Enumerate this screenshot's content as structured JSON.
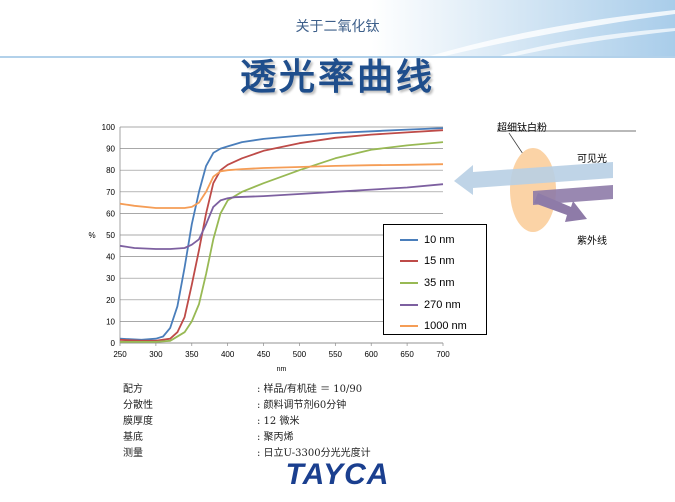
{
  "header": {
    "subtitle": "关于二氧化钛",
    "title": "透光率曲线"
  },
  "chart_data": {
    "type": "line",
    "xlabel": "nm",
    "ylabel": "%",
    "xlim": [
      250,
      700
    ],
    "ylim": [
      0,
      100
    ],
    "x_ticks": [
      250,
      300,
      350,
      400,
      450,
      500,
      550,
      600,
      650,
      700
    ],
    "y_ticks": [
      0,
      10,
      20,
      30,
      40,
      50,
      60,
      70,
      80,
      90,
      100
    ],
    "grid": "horizontal",
    "legend_position": "bottom-right",
    "series": [
      {
        "name": "10 nm",
        "color": "#4a7ebb",
        "x": [
          250,
          280,
          300,
          310,
          320,
          330,
          340,
          350,
          360,
          370,
          380,
          390,
          400,
          420,
          450,
          500,
          550,
          600,
          650,
          700
        ],
        "y": [
          2,
          1.5,
          2,
          3,
          7,
          17,
          35,
          55,
          70,
          82,
          88,
          90,
          91,
          93,
          94.5,
          96,
          97.2,
          98,
          98.8,
          99.5
        ]
      },
      {
        "name": "15 nm",
        "color": "#be4b48",
        "x": [
          250,
          280,
          300,
          320,
          330,
          340,
          350,
          360,
          370,
          380,
          390,
          400,
          420,
          450,
          500,
          550,
          600,
          650,
          700
        ],
        "y": [
          1.5,
          1,
          1,
          2,
          5,
          12,
          27,
          43,
          60,
          74,
          80,
          82.5,
          85.5,
          89,
          92.5,
          95,
          96.5,
          97.5,
          98.5
        ]
      },
      {
        "name": "35 nm",
        "color": "#98b954",
        "x": [
          250,
          300,
          320,
          340,
          350,
          360,
          370,
          380,
          390,
          400,
          420,
          450,
          500,
          550,
          600,
          650,
          700
        ],
        "y": [
          0.5,
          0.5,
          1,
          5,
          10,
          18,
          32,
          48,
          60,
          66,
          70,
          74,
          80,
          85.5,
          89.5,
          91.5,
          93
        ]
      },
      {
        "name": "270 nm",
        "color": "#7d60a0",
        "x": [
          250,
          270,
          300,
          320,
          340,
          350,
          360,
          370,
          380,
          390,
          400,
          410,
          450,
          500,
          550,
          600,
          650,
          700
        ],
        "y": [
          45,
          44,
          43.5,
          43.5,
          44,
          45.5,
          48,
          55,
          63,
          66,
          67,
          67.5,
          68,
          69,
          70,
          71,
          72,
          73.5
        ]
      },
      {
        "name": "1000 nm",
        "color": "#f59d56",
        "x": [
          250,
          270,
          300,
          320,
          340,
          350,
          360,
          370,
          380,
          390,
          400,
          420,
          450,
          500,
          550,
          600,
          650,
          700
        ],
        "y": [
          64.5,
          63.5,
          62.5,
          62.5,
          62.5,
          63,
          65,
          70,
          77,
          79.5,
          80,
          80.5,
          81,
          81.5,
          82,
          82.3,
          82.5,
          82.8
        ]
      }
    ]
  },
  "diagram": {
    "particle_label": "超细钛白粉",
    "visible_label": "可见光",
    "uv_label": "紫外线",
    "colors": {
      "particle": "#fbd3a6",
      "visible": "#b8cfe4",
      "uv": "#8e7ba8"
    }
  },
  "specs": [
    {
      "label": "配方",
      "value": ": 样品/有机硅 ＝ 10/90"
    },
    {
      "label": "分散性",
      "value": ": 颜料调节剂60分钟"
    },
    {
      "label": "膜厚度",
      "value": ": 12 微米"
    },
    {
      "label": "基底",
      "value": ": 聚丙烯"
    },
    {
      "label": "测量",
      "value": ": 日立U-3300分光光度计"
    }
  ],
  "logo": {
    "text": "TAYCA"
  },
  "colors": {
    "title": "#1f4e8c",
    "logo": "#1a3f8f"
  }
}
